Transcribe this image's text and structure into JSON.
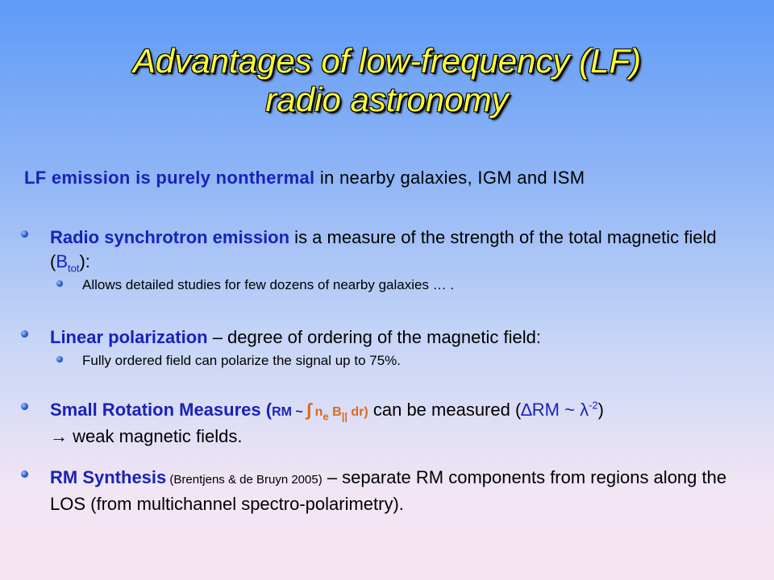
{
  "title": {
    "line1": "Advantages of low-frequency (LF)",
    "line2": "radio astronomy"
  },
  "lead": {
    "emph": "LF emission is purely nonthermal",
    "rest": " in nearby galaxies, IGM and ISM"
  },
  "bullets": {
    "sync": {
      "emph": "Radio synchrotron emission",
      "rest": " is a measure of the strength of the total magnetic field (",
      "sym": "B",
      "sub": "tot",
      "tail": "):",
      "sub_item": "Allows detailed studies for few dozens of nearby galaxies … ."
    },
    "pol": {
      "emph": "Linear polarization",
      "rest": " – degree of ordering of the magnetic field:",
      "sub_item": "Fully ordered field can polarize the signal up to 75%."
    },
    "rm": {
      "emph": "Small Rotation Measures (",
      "f1": "RM ~ ",
      "integral": "∫",
      "f2": " n",
      "f2_sub": "e",
      "f3": " B",
      "f3_sub": "||",
      "f4": " dr)",
      "rest": " can be measured (",
      "delta": "∆",
      "rm": "RM ~ ",
      "lambda": "λ",
      "lambda_sup": "-2",
      "tail": ")",
      "line2": "→ weak magnetic fields."
    },
    "synth": {
      "emph": "RM Synthesis",
      "src": " (Brentjens & de Bruyn 2005)",
      "rest": " –  separate RM components from regions along the LOS (from multichannel spectro-polarimetry)."
    }
  }
}
